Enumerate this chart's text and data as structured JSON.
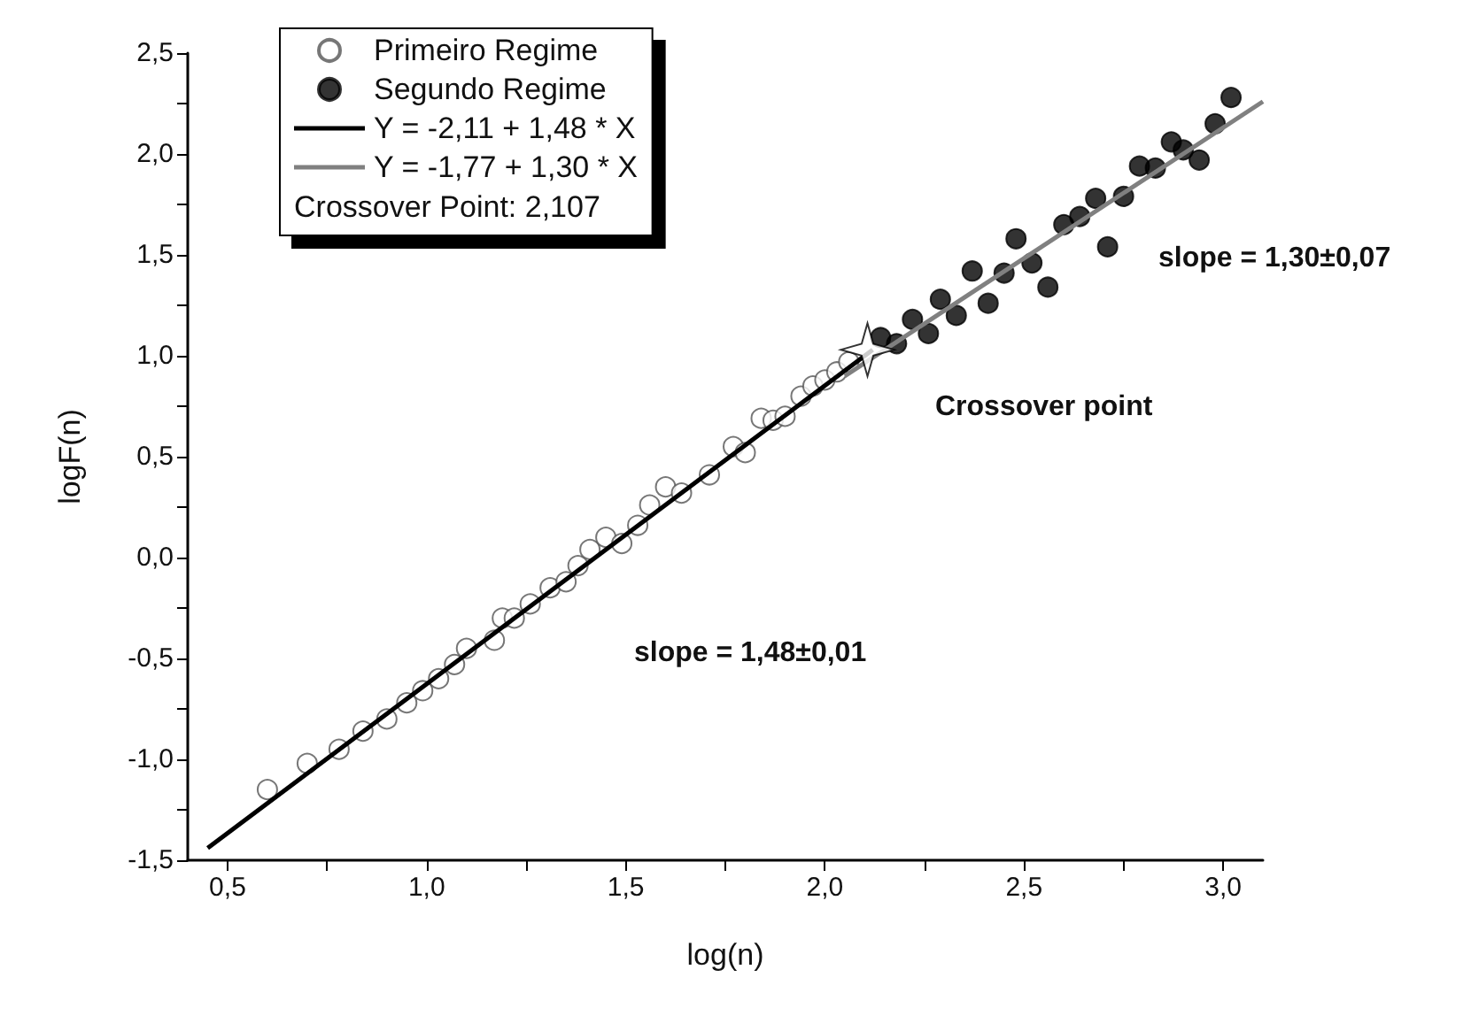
{
  "chart_data": {
    "type": "scatter",
    "xlabel": "log(n)",
    "ylabel": "logF(n)",
    "xlim": [
      0.4,
      3.1
    ],
    "ylim": [
      -1.5,
      2.5
    ],
    "xticks": [
      {
        "value": 0.5,
        "label": "0,5"
      },
      {
        "value": 1,
        "label": "1,0"
      },
      {
        "value": 1.5,
        "label": "1,5"
      },
      {
        "value": 2,
        "label": "2,0"
      },
      {
        "value": 2.5,
        "label": "2,5"
      },
      {
        "value": 3,
        "label": "3,0"
      }
    ],
    "yticks": [
      {
        "value": -1.5,
        "label": "-1,5"
      },
      {
        "value": -1,
        "label": "-1,0"
      },
      {
        "value": -0.5,
        "label": "-0,5"
      },
      {
        "value": 0,
        "label": "0,0"
      },
      {
        "value": 0.5,
        "label": "0,5"
      },
      {
        "value": 1,
        "label": "1,0"
      },
      {
        "value": 1.5,
        "label": "1,5"
      },
      {
        "value": 2,
        "label": "2,0"
      },
      {
        "value": 2.5,
        "label": "2,5"
      }
    ],
    "grid": false,
    "legend": "top left",
    "series": [
      {
        "name": "Primeiro Regime",
        "marker": "circle",
        "color": "#ffffff",
        "x": [
          0.6,
          0.7,
          0.78,
          0.84,
          0.9,
          0.95,
          0.99,
          1.03,
          1.07,
          1.1,
          1.17,
          1.19,
          1.22,
          1.26,
          1.31,
          1.35,
          1.38,
          1.41,
          1.45,
          1.49,
          1.53,
          1.56,
          1.6,
          1.64,
          1.71,
          1.77,
          1.8,
          1.84,
          1.87,
          1.9,
          1.94,
          1.97,
          2.0,
          2.03,
          2.06
        ],
        "values": [
          -1.15,
          -1.02,
          -0.95,
          -0.86,
          -0.8,
          -0.72,
          -0.66,
          -0.6,
          -0.53,
          -0.45,
          -0.41,
          -0.3,
          -0.3,
          -0.23,
          -0.15,
          -0.12,
          -0.04,
          0.04,
          0.1,
          0.07,
          0.16,
          0.26,
          0.35,
          0.32,
          0.41,
          0.55,
          0.52,
          0.69,
          0.68,
          0.7,
          0.8,
          0.85,
          0.88,
          0.92,
          0.97
        ]
      },
      {
        "name": "Segundo Regime",
        "marker": "circle",
        "color": "#000000",
        "x": [
          2.14,
          2.18,
          2.22,
          2.26,
          2.29,
          2.33,
          2.37,
          2.41,
          2.45,
          2.48,
          2.52,
          2.56,
          2.6,
          2.64,
          2.68,
          2.71,
          2.75,
          2.79,
          2.83,
          2.87,
          2.9,
          2.94,
          2.98,
          3.02
        ],
        "values": [
          1.09,
          1.06,
          1.18,
          1.11,
          1.28,
          1.2,
          1.42,
          1.26,
          1.41,
          1.58,
          1.46,
          1.34,
          1.65,
          1.69,
          1.78,
          1.54,
          1.79,
          1.94,
          1.93,
          2.06,
          2.02,
          1.97,
          2.15,
          2.28
        ]
      },
      {
        "name": "Y = -2,11 + 1,48 * X",
        "type": "line",
        "color": "#000000",
        "x": [
          0.45,
          2.12
        ],
        "values": [
          -1.44,
          1.03
        ]
      },
      {
        "name": "Y = -1,77 + 1,30 * X",
        "type": "line",
        "color": "#808080",
        "x": [
          2.05,
          3.1
        ],
        "values": [
          0.9,
          2.26
        ]
      },
      {
        "marker": "star",
        "color": "#ffffff",
        "x": [
          2.107
        ],
        "values": [
          1.03
        ]
      }
    ],
    "annotations": [
      "Crossover Point: 2,107",
      "Crossover point",
      "slope = 1,48±0,01",
      "slope = 1,30±0,07"
    ]
  }
}
